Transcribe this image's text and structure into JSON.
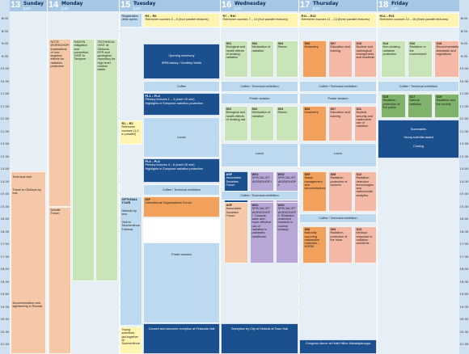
{
  "days": [
    {
      "num": "13",
      "name": "Sunday",
      "month": "June"
    },
    {
      "num": "14",
      "name": "Monday",
      "month": "June"
    },
    {
      "num": "15",
      "name": "Tuesday",
      "month": "June"
    },
    {
      "num": "16",
      "name": "Wednesday",
      "month": "June"
    },
    {
      "num": "17",
      "name": "Thursday",
      "month": "June"
    },
    {
      "num": "18",
      "name": "Friday",
      "month": "June"
    }
  ],
  "times": [
    "8:00",
    "8:30",
    "9:00",
    "9:30",
    "10:00",
    "10:30",
    "11:00",
    "11:30",
    "12:00",
    "12:30",
    "13:00",
    "13:30",
    "14:00",
    "14:30",
    "15:00",
    "15:30",
    "16:00",
    "16:30",
    "17:00",
    "17:30",
    "18:00",
    "18:30",
    "19:00",
    "19:30",
    "20:00",
    "20:30",
    "21:00"
  ],
  "sunday": {
    "technical_visit": "Technical visit",
    "travel": "Travel to Olkiluoto by bus",
    "accommodation": "Accommodation and sightseeing in Rauma"
  },
  "monday": {
    "note": "NOTE WORKSHOP: Implications of non-targeted effects for radiation protection",
    "radon": "RADON mitigation and prevention, VISIT to Tampere",
    "technical": "TECHNICAL VISIT at Olkiluoto EPR and geological repository for high level nuclear waste",
    "forum": "Dofoffe Forum"
  },
  "tuesday": {
    "registration": "Registration desk opens",
    "r3_code": "R3 – R6",
    "r3_text": "Refresher courses 3 – 6 (four parallel lectures)",
    "opening": "Opening ceremony",
    "history": "IRPA history / Geoffrey Webb",
    "coffee": "Coffee",
    "pl1_code": "PL1 – PL3",
    "pl1_text": "Plenary lectures 1 – 3 (each 20 min)",
    "pl1_sub": "Highlights in European radiation protection",
    "r1_code": "R1 – R2",
    "r1_text": "Refresher courses (1-2 in parallel)",
    "lunch": "Lunch",
    "pl4_code": "PL4 – PL6",
    "pl4_text": "Plenary lectures 4 – 6 (each 20 min)",
    "pl4_sub": "Highlights in European radiation protection",
    "coffee_exh": "Coffee / Technical exhibition",
    "optional": "OPTIONAL TOUR",
    "helsinki": "Helsinki by sea",
    "suomenlinna": "Visit to Suomenlinna Fortress",
    "iof_code": "IOF",
    "iof_text": "International Organisations Forum",
    "poster": "Poster session",
    "young": "Young scientists get-together at Suomenlinna",
    "reception": "Concert and welcome reception at Finlandia Hall"
  },
  "wednesday": {
    "r7_code": "R7 – R10",
    "r7_text": "Refresher courses 7 – 10 (four parallel lectures)",
    "s01a": "Biological and health effects of ionising radiation",
    "s02a": "Medication of radiation",
    "s03a": "Radon",
    "coffee_exh": "Coffee / Technical exhibition",
    "poster": "Poster session",
    "s01b": "Biological and health effects of ionising rad.",
    "s02b": "Medication of radiation",
    "s03b": "Radon",
    "lunch": "Lunch",
    "asf": "Associated Societies Forum",
    "ws1": "SPECIALIST WORKSHOP I",
    "ws2": "SPECIALIST WORKSHOP II",
    "coffee_exh2": "Coffee / Technical exhibition",
    "asf2": "Associated Societies Forum",
    "ws1b": "SPECIALIST WORKSHOP I: Towards safer and more effective use of radiation in paediatric healthcare",
    "ws2b": "SPECIALIST WORKSHOP II: Radiation protection research in nuclear industry",
    "reception": "Reception by City of Helsinki at Town Hall"
  },
  "thursday": {
    "r11_code": "R11 – R13",
    "r11_text": "Refresher courses 11 – 13 (three parallel lectures)",
    "s04a": "Dosimetry",
    "s07a": "Education and training",
    "s10a": "Nuclear and radiological emergencies and incidents",
    "coffee_exh": "Coffee / Technical exhibition",
    "poster": "Poster session",
    "s04b": "Dosimetry",
    "s07b": "Education and training",
    "s11b": "Nuclear security and malevolent use of radiation",
    "lunch": "Lunch",
    "s05": "Waste management and decommissioning",
    "s08": "Radiation protection of workers",
    "s12": "Radiation detection technologies and radionuclide analytics",
    "coffee_exh2": "Coffee / Technical exhibition",
    "s06": "Naturally occurring radioactive materials – NORM",
    "s09": "Radiation protection of the biota",
    "s13": "Medical response to radiation accidents",
    "dinner": "Congress dinner at Hotel Hilton Kalastajatorppa"
  },
  "friday": {
    "r14_code": "R14 – R16",
    "r14_text": "Refresher courses 14 – 16 (three parallel lectures)",
    "s14": "Non-ionising radiation protection",
    "s16": "Radiation in the environment",
    "s18": "Recommendations, standards and regulations",
    "coffee_exh": "Coffee / Technical exhibition",
    "s15": "Radiation protection of the public",
    "s17": "Natural radiation",
    "s19": "Radiation and the society",
    "summaries": "Summaries",
    "award": "Young scientist award",
    "closing": "Closing"
  }
}
